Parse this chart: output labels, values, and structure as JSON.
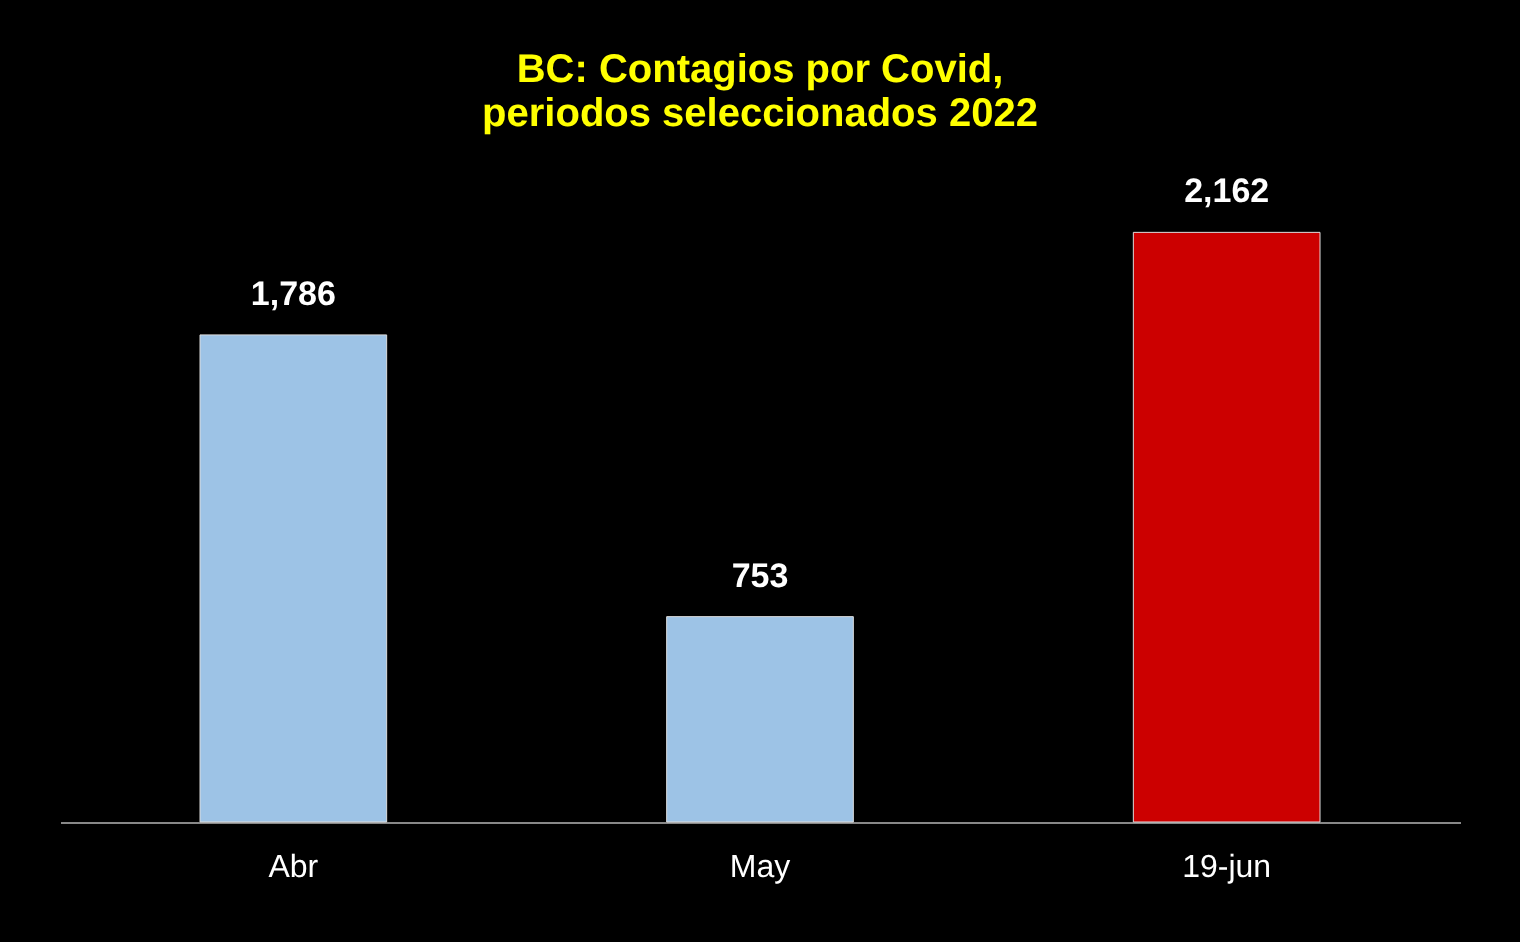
{
  "chart_data": {
    "type": "bar",
    "title": "BC: Contagios por Covid,\nperiodos seleccionados 2022",
    "categories": [
      "Abr",
      "May",
      "19-jun"
    ],
    "values": [
      1786,
      753,
      2162
    ],
    "colors": [
      "#9dc3e6",
      "#9dc3e6",
      "#cc0000"
    ],
    "value_labels": [
      "1,786",
      "753",
      "2,162"
    ]
  }
}
